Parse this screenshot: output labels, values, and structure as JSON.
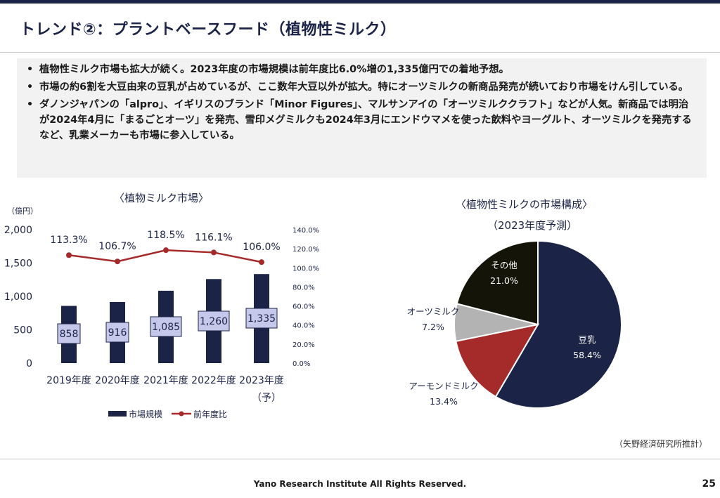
{
  "header": {
    "title": "トレンド②：プラントベースフード（植物性ミルク）"
  },
  "bullets": [
    "植物性ミルク市場も拡大が続く。2023年度の市場規模は前年度比6.0%増の1,335億円での着地予想。",
    "市場の約6割を大豆由来の豆乳が占めているが、ここ数年大豆以外が拡大。特にオーツミルクの新商品発売が続いており市場をけん引している。",
    "ダノンジャパンの「alpro」、イギリスのブランド「Minor Figures」、マルサンアイの「オーツミルククラフト」などが人気。新商品では明治が2024年4月に「まるごとオーツ」を発売、雪印メグミルクも2024年3月にエンドウマメを使った飲料やヨーグルト、オーツミルクを発売するなど、乳業メーカーも市場に参入している。"
  ],
  "chart_data": [
    {
      "type": "bar",
      "title": "〈植物ミルク市場〉",
      "ylabel": "（億円）",
      "ylim": [
        0,
        2000
      ],
      "yticks": [
        "0",
        "500",
        "1,000",
        "1,500",
        "2,000"
      ],
      "y2lim": [
        0,
        140
      ],
      "y2ticks": [
        "0.0%",
        "20.0%",
        "40.0%",
        "60.0%",
        "80.0%",
        "100.0%",
        "120.0%",
        "140.0%"
      ],
      "categories": [
        "2019年度",
        "2020年度",
        "2021年度",
        "2022年度",
        "2023年度"
      ],
      "category_note": "（予）",
      "series": [
        {
          "name": "市場規模",
          "type": "bar",
          "color": "#1b2347",
          "values": [
            858,
            916,
            1085,
            1260,
            1335
          ],
          "labels": [
            "858",
            "916",
            "1,085",
            "1,260",
            "1,335"
          ]
        },
        {
          "name": "前年度比",
          "type": "line",
          "axis": "right",
          "color": "#a52a2a",
          "values": [
            113.3,
            106.7,
            118.5,
            116.1,
            106.0
          ],
          "labels": [
            "113.3%",
            "106.7%",
            "118.5%",
            "116.1%",
            "106.0%"
          ]
        }
      ]
    },
    {
      "type": "pie",
      "title": "〈植物性ミルクの市場構成〉",
      "subtitle": "（2023年度予測）",
      "slices": [
        {
          "label": "豆乳",
          "value": 58.4,
          "text": "58.4%",
          "color": "#1b2347"
        },
        {
          "label": "アーモンドミルク",
          "value": 13.4,
          "text": "13.4%",
          "color": "#a52a2a"
        },
        {
          "label": "オーツミルク",
          "value": 7.2,
          "text": "7.2%",
          "color": "#b3b3b3"
        },
        {
          "label": "その他",
          "value": 21.0,
          "text": "21.0%",
          "color": "#141408"
        }
      ]
    }
  ],
  "source": "（矢野経済研究所推計）",
  "footer": "Yano Research Institute All Rights Reserved.",
  "page_number": "25"
}
